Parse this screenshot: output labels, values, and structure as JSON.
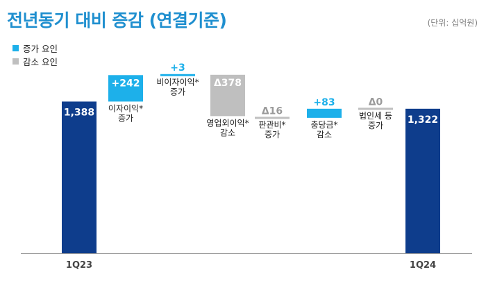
{
  "title": "전년동기 대비 증감 (연결기준)",
  "unit": "(단위: 십억원)",
  "legend": [
    {
      "label": "증가 요인",
      "color": "#1db0ea"
    },
    {
      "label": "감소 요인",
      "color": "#bfbfbf"
    }
  ],
  "chart_data": {
    "type": "bar",
    "subtype": "waterfall",
    "categories": [
      "1Q23",
      "이자이익* 증가",
      "비이자이익* 증가",
      "영업외이익* 감소",
      "판관비* 증가",
      "충당금* 감소",
      "법인세 등 증가",
      "1Q24"
    ],
    "values": [
      1388,
      242,
      3,
      -378,
      -16,
      83,
      0,
      1322
    ],
    "value_labels": [
      "1,388",
      "+242",
      "+3",
      "Δ378",
      "Δ16",
      "+83",
      "Δ0",
      "1,322"
    ],
    "category_lines": [
      [
        "1Q23"
      ],
      [
        "이자이익*",
        "증가"
      ],
      [
        "비이자이익*",
        "증가"
      ],
      [
        "영업외이익*",
        "감소"
      ],
      [
        "판관비*",
        "증가"
      ],
      [
        "충당금*",
        "감소"
      ],
      [
        "법인세 등",
        "증가"
      ],
      [
        "1Q24"
      ]
    ],
    "kinds": [
      "total",
      "increase",
      "increase",
      "decrease",
      "decrease",
      "increase",
      "decrease",
      "total"
    ],
    "colors": {
      "total": "#0e3d8c",
      "increase": "#1db0ea",
      "decrease": "#bfbfbf",
      "decrease_text": "#9a9a9a"
    },
    "xlabel": "",
    "ylabel": "",
    "grid": false,
    "legend_position": "top-left"
  }
}
